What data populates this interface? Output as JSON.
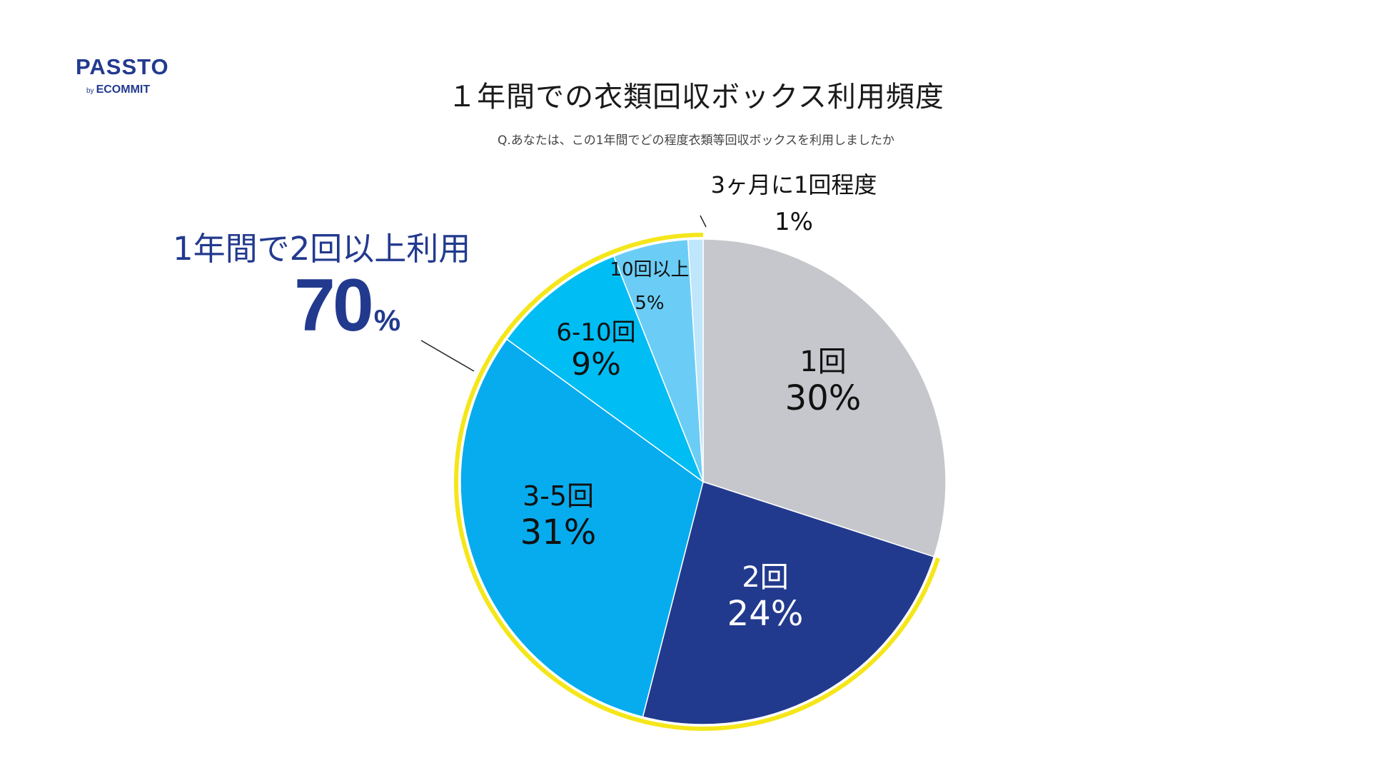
{
  "logo": {
    "name": "PASSTO",
    "by": "by",
    "company": "ECOMMIT"
  },
  "title": "１年間での衣類回収ボックス利用頻度",
  "subtitle": "Q.あなたは、この1年間でどの程度衣類等回収ボックスを利用しましたか",
  "callout": {
    "label": "1年間で2回以上利用",
    "value": "70",
    "unit": "%"
  },
  "colors": {
    "brand": "#223a8e",
    "highlight": "#f5e61a",
    "slice_1": "#c5c7cc",
    "slice_2": "#223a8e",
    "slice_3": "#07acee",
    "slice_4": "#00bdf3",
    "slice_5": "#6bcdf5",
    "slice_6": "#bfe6fa"
  },
  "chart_data": {
    "type": "pie",
    "title": "１年間での衣類回収ボックス利用頻度",
    "start": "12 o'clock",
    "direction": "clockwise",
    "slices": [
      {
        "label": "1回",
        "value": 30,
        "value_label": "30%",
        "color": "#c5c7cc"
      },
      {
        "label": "2回",
        "value": 24,
        "value_label": "24%",
        "color": "#223a8e"
      },
      {
        "label": "3-5回",
        "value": 31,
        "value_label": "31%",
        "color": "#07acee"
      },
      {
        "label": "6-10回",
        "value": 9,
        "value_label": "9%",
        "color": "#00bdf3"
      },
      {
        "label": "10回以上",
        "value": 5,
        "value_label": "5%",
        "color": "#6bcdf5"
      },
      {
        "label": "3ヶ月に1回程度",
        "value": 1,
        "value_label": "1%",
        "color": "#bfe6fa"
      }
    ],
    "highlight_arc_slices": [
      "2回",
      "3-5回",
      "6-10回",
      "10回以上",
      "3ヶ月に1回程度"
    ]
  }
}
